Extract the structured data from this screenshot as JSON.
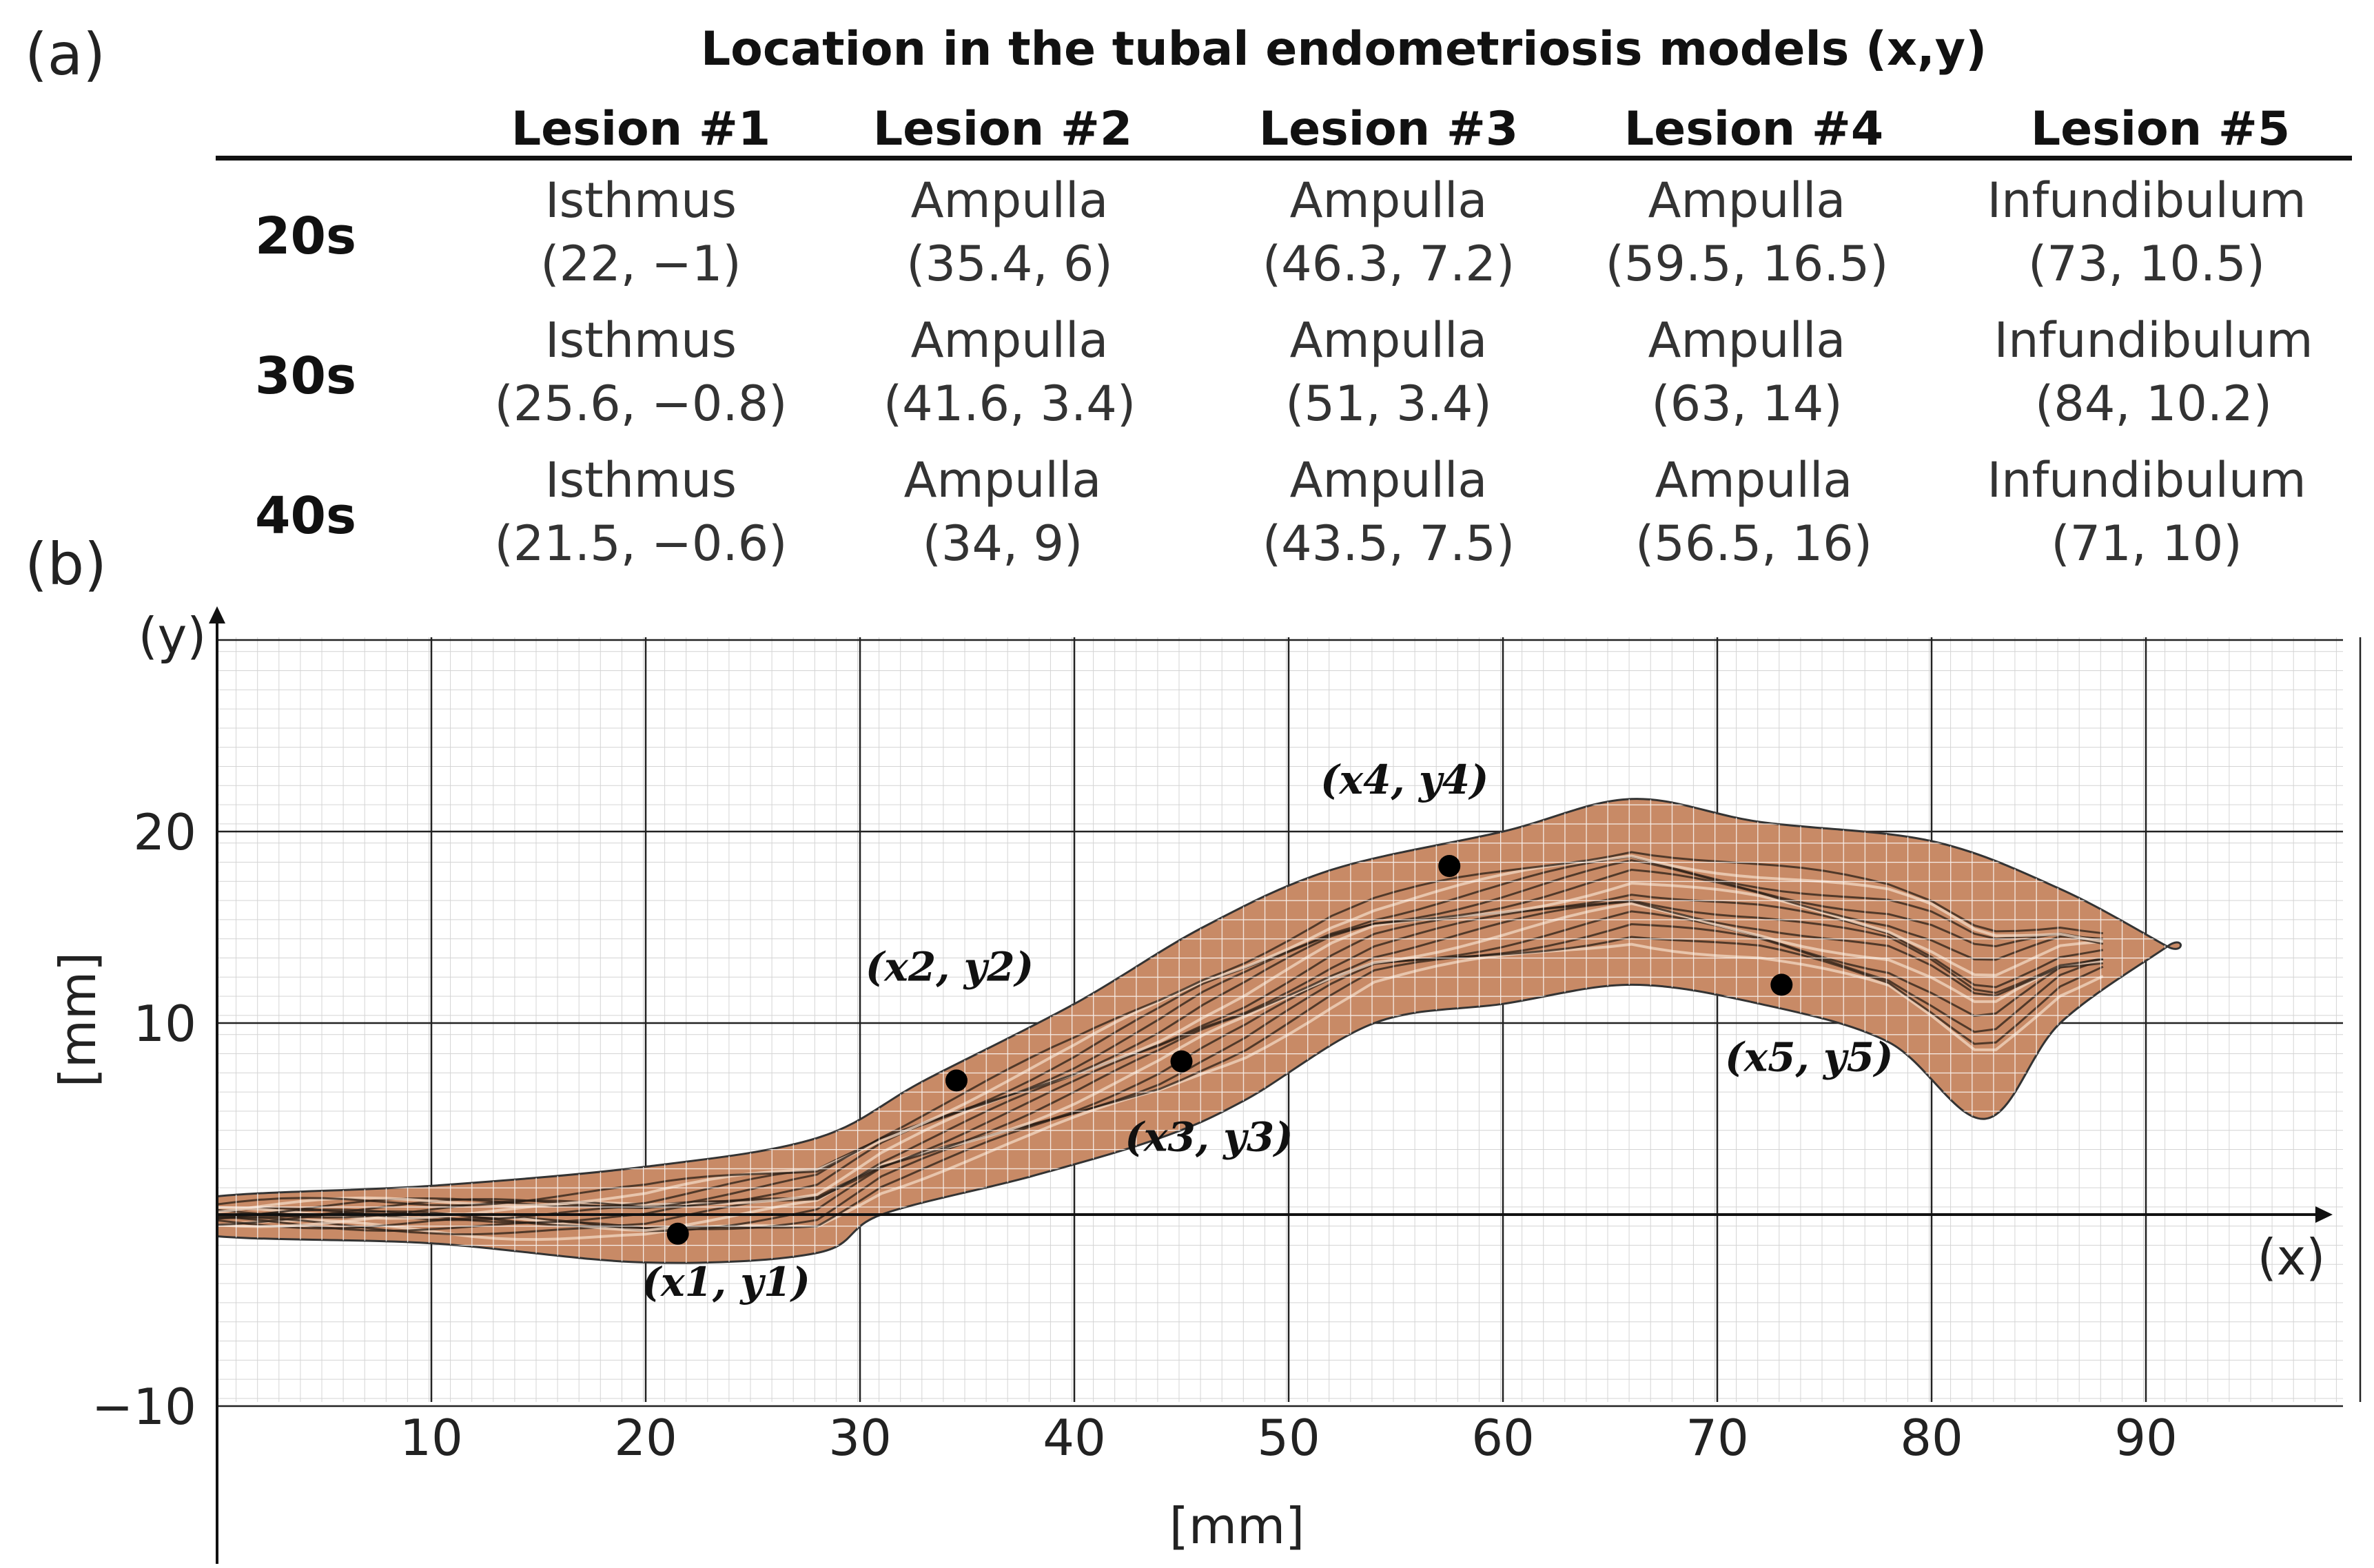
{
  "panel_labels": {
    "a": "(a)",
    "b": "(b)"
  },
  "table": {
    "title": "Location in the tubal endometriosis models (x,y)",
    "columns": [
      "Lesion #1",
      "Lesion #2",
      "Lesion #3",
      "Lesion #4",
      "Lesion #5"
    ],
    "rows": [
      {
        "label": "20s",
        "cells": [
          {
            "region": "Isthmus",
            "coord": "(22, −1)"
          },
          {
            "region": "Ampulla",
            "coord": "(35.4, 6)"
          },
          {
            "region": "Ampulla",
            "coord": "(46.3, 7.2)"
          },
          {
            "region": "Ampulla",
            "coord": "(59.5, 16.5)"
          },
          {
            "region": "Infundibulum",
            "coord": "(73, 10.5)"
          }
        ]
      },
      {
        "label": "30s",
        "cells": [
          {
            "region": "Isthmus",
            "coord": "(25.6, −0.8)"
          },
          {
            "region": "Ampulla",
            "coord": "(41.6, 3.4)"
          },
          {
            "region": "Ampulla",
            "coord": "(51, 3.4)"
          },
          {
            "region": "Ampulla",
            "coord": "(63, 14)"
          },
          {
            "region": "Infundibulum",
            "coord": "(84, 10.2)"
          }
        ]
      },
      {
        "label": "40s",
        "cells": [
          {
            "region": "Isthmus",
            "coord": "(21.5, −0.6)"
          },
          {
            "region": "Ampulla",
            "coord": "(34, 9)"
          },
          {
            "region": "Ampulla",
            "coord": "(43.5, 7.5)"
          },
          {
            "region": "Ampulla",
            "coord": "(56.5, 16)"
          },
          {
            "region": "Infundibulum",
            "coord": "(71, 10)"
          }
        ]
      }
    ]
  },
  "chart_data": {
    "type": "scatter",
    "title": "",
    "xlabel": "[mm]",
    "ylabel": "[mm]",
    "x_axis_name": "(x)",
    "y_axis_name": "(y)",
    "xlim": [
      0,
      100
    ],
    "ylim": [
      -10,
      30
    ],
    "xticks": [
      10,
      20,
      30,
      40,
      50,
      60,
      70,
      80,
      90
    ],
    "yticks": [
      -10,
      10,
      20
    ],
    "grid": true,
    "tube_outline": {
      "upper": [
        [
          -1,
          0.8
        ],
        [
          10,
          1.5
        ],
        [
          20,
          2.5
        ],
        [
          28,
          4
        ],
        [
          33,
          7
        ],
        [
          40,
          11
        ],
        [
          46,
          15
        ],
        [
          52,
          18
        ],
        [
          60,
          20
        ],
        [
          66,
          21.7
        ],
        [
          72,
          20.5
        ],
        [
          80,
          19.5
        ],
        [
          86,
          17
        ],
        [
          91,
          14
        ]
      ],
      "lower": [
        [
          91,
          14
        ],
        [
          86,
          10
        ],
        [
          82.5,
          5
        ],
        [
          78,
          9
        ],
        [
          72,
          11
        ],
        [
          66,
          12
        ],
        [
          60,
          11
        ],
        [
          54,
          10
        ],
        [
          48,
          6
        ],
        [
          44,
          4
        ],
        [
          38,
          2
        ],
        [
          31,
          0
        ],
        [
          28,
          -2
        ],
        [
          20,
          -2.5
        ],
        [
          10,
          -1.5
        ],
        [
          -1,
          -1
        ]
      ]
    },
    "points": [
      {
        "label": "(x1, y1)",
        "x": 21.5,
        "y": -1
      },
      {
        "label": "(x2, y2)",
        "x": 34.5,
        "y": 7
      },
      {
        "label": "(x3, y3)",
        "x": 45,
        "y": 8
      },
      {
        "label": "(x4, y4)",
        "x": 57.5,
        "y": 18.2
      },
      {
        "label": "(x5, y5)",
        "x": 73,
        "y": 12
      }
    ]
  },
  "colors": {
    "tube": "#c88a66",
    "tube_edge": "#333333",
    "grid_major": "#222222",
    "grid_minor": "#d4d4d4"
  }
}
